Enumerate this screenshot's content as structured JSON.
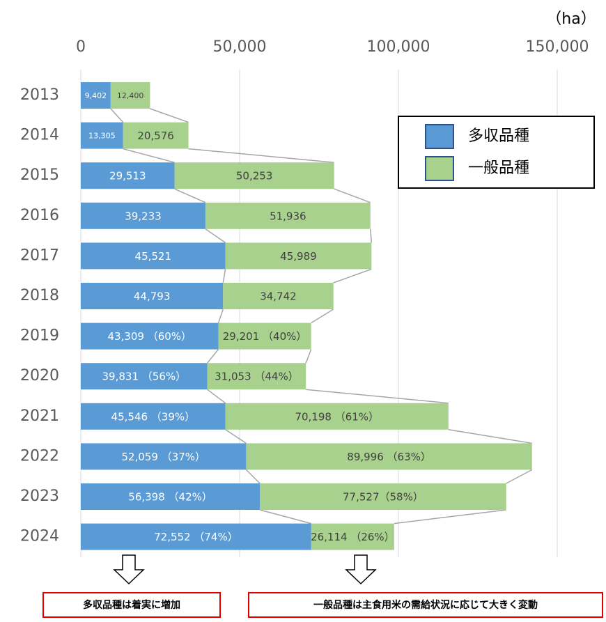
{
  "chart_data": {
    "type": "barh_stacked",
    "unit_label": "（ha）",
    "categories": [
      "2013",
      "2014",
      "2015",
      "2016",
      "2017",
      "2018",
      "2019",
      "2020",
      "2021",
      "2022",
      "2023",
      "2024"
    ],
    "series": [
      {
        "name": "多収品種",
        "color": "#5b9bd5",
        "values": [
          9402,
          13305,
          29513,
          39233,
          45521,
          44793,
          43309,
          39831,
          45546,
          52059,
          56398,
          72552
        ],
        "value_labels": [
          "9,402",
          "13,305",
          "29,513",
          "39,233",
          "45,521",
          "44,793",
          "43,309 （60%）",
          "39,831 （56%）",
          "45,546 （39%）",
          "52,059 （37%）",
          "56,398 （42%）",
          "72,552 （74%）"
        ]
      },
      {
        "name": "一般品種",
        "color": "#a9d18e",
        "values": [
          12400,
          20576,
          50253,
          51936,
          45989,
          34742,
          29201,
          31053,
          70198,
          89996,
          77527,
          26114
        ],
        "value_labels": [
          "12,400",
          "20,576",
          "50,253",
          "51,936",
          "45,989",
          "34,742",
          "29,201 （40%）",
          "31,053 （44%）",
          "70,198 （61%）",
          "89,996 （63%）",
          "77,527（58%）",
          "26,114 （26%）"
        ]
      }
    ],
    "xlim": [
      0,
      150000
    ],
    "xticks": [
      0,
      {
        "value": 50000,
        "label": "50,000"
      },
      {
        "value": 100000,
        "label": "100,000"
      },
      {
        "value": 150000,
        "label": "150,000"
      }
    ],
    "grid": true,
    "legend": "upper right",
    "annotations": [
      "多収品種は着実に増加",
      "一般品種は主食用米の需給状況に応じて大きく変動"
    ]
  }
}
